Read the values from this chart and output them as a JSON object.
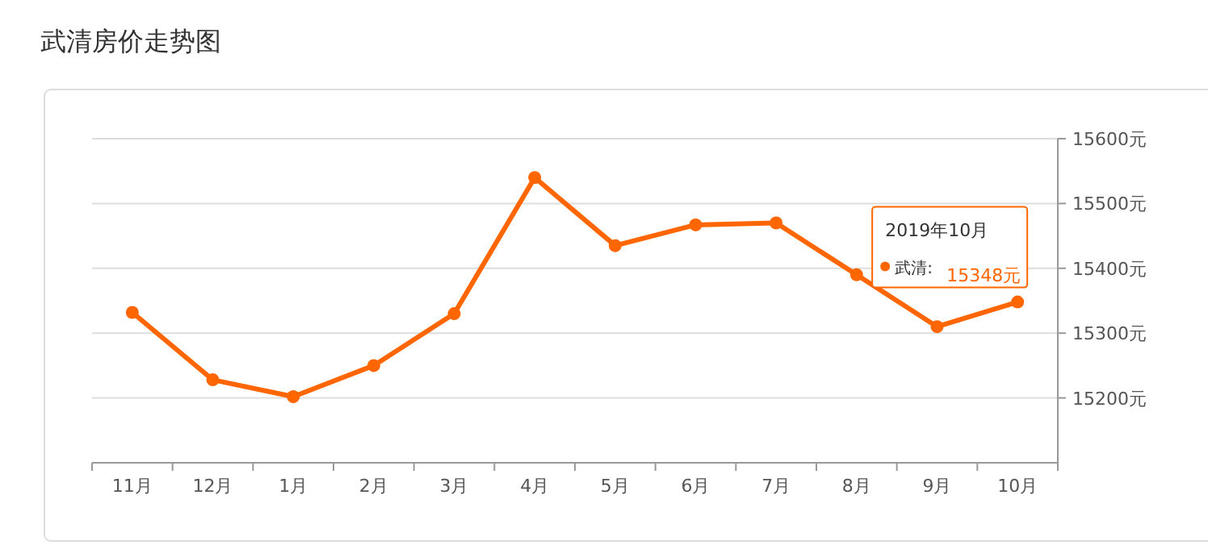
{
  "chart_data": {
    "type": "line",
    "title": "武清房价走势图",
    "categories": [
      "11月",
      "12月",
      "1月",
      "2月",
      "3月",
      "4月",
      "5月",
      "6月",
      "7月",
      "8月",
      "9月",
      "10月"
    ],
    "series": [
      {
        "name": "武清:",
        "color": "#ff6600",
        "values": [
          15332,
          15228,
          15202,
          15250,
          15330,
          15540,
          15435,
          15467,
          15470,
          15390,
          15310,
          15348
        ]
      }
    ],
    "ylim": [
      15100,
      15600
    ],
    "yticks": [
      {
        "value": 15200,
        "label": "15200元"
      },
      {
        "value": 15300,
        "label": "15300元"
      },
      {
        "value": 15400,
        "label": "15400元"
      },
      {
        "value": 15500,
        "label": "15500元"
      },
      {
        "value": 15600,
        "label": "15600元"
      }
    ],
    "grid": "y",
    "marker": "circle",
    "line_style": "solid",
    "legend": "top right",
    "annotations": [
      "2019年10月",
      {
        "text": "15348元",
        "x": "10月",
        "y": 15348
      }
    ]
  }
}
